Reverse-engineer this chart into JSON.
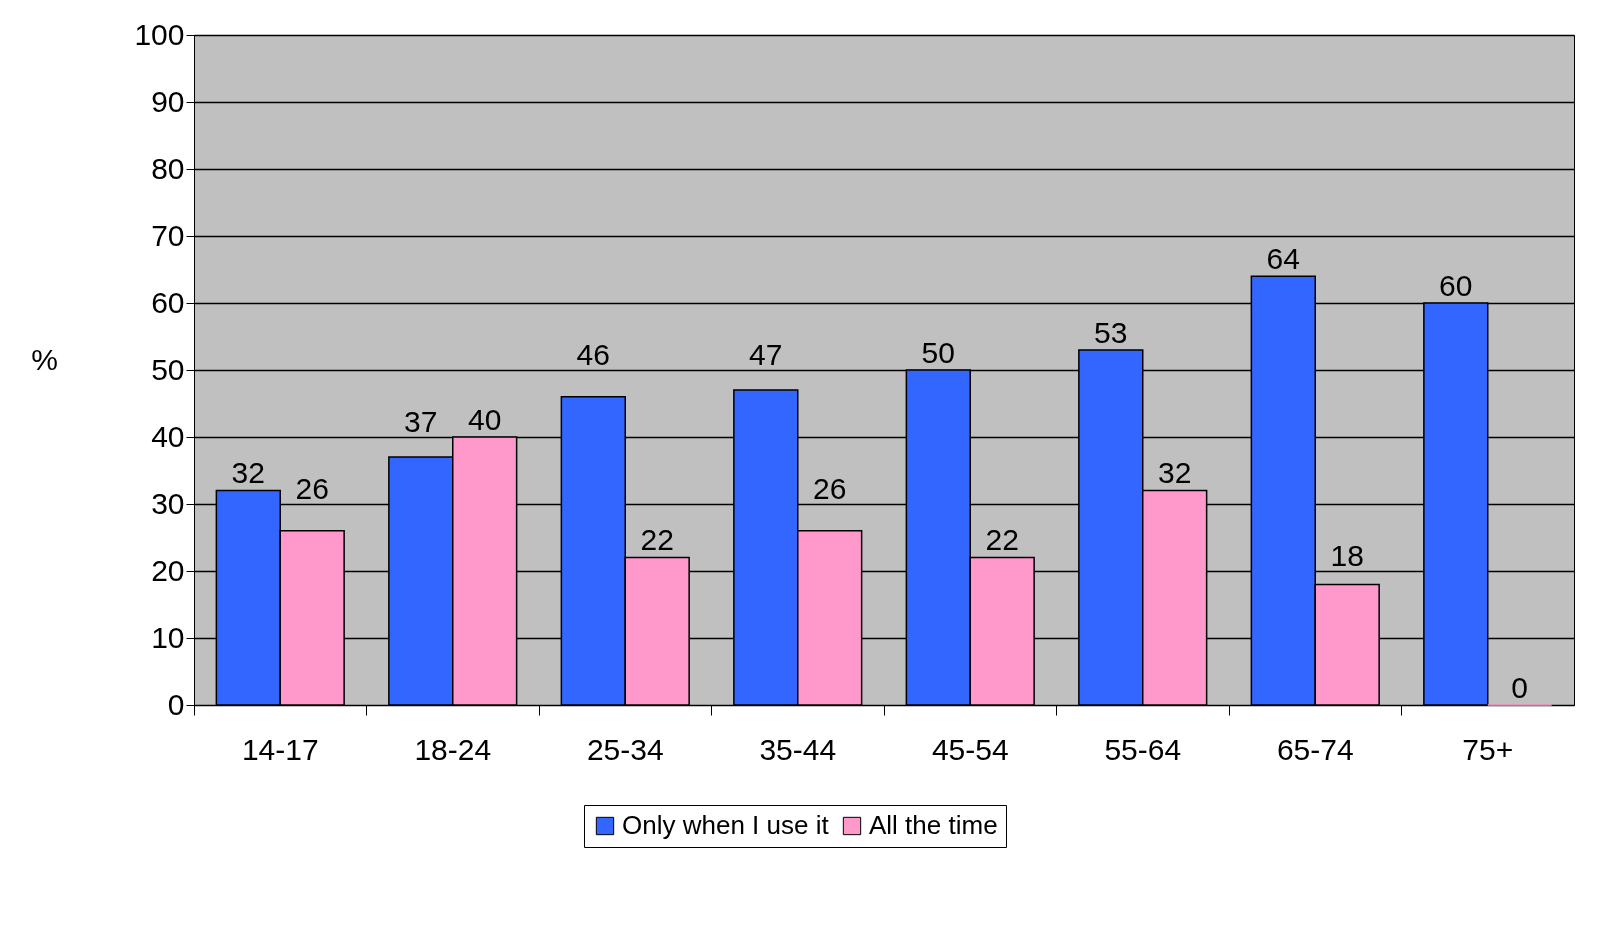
{
  "chart_data": {
    "type": "bar",
    "ylabel": "%",
    "categories": [
      "14-17",
      "18-24",
      "25-34",
      "35-44",
      "45-54",
      "55-64",
      "65-74",
      "75+"
    ],
    "series": [
      {
        "name": "Only when I use it",
        "color": "#3366ff",
        "values": [
          32,
          37,
          46,
          47,
          50,
          53,
          64,
          60
        ]
      },
      {
        "name": "All the time",
        "color": "#ff99cc",
        "values": [
          26,
          40,
          22,
          26,
          22,
          32,
          18,
          0
        ]
      }
    ],
    "ylim": [
      0,
      100
    ],
    "yticks": [
      0,
      10,
      20,
      30,
      40,
      50,
      60,
      70,
      80,
      90,
      100
    ],
    "grid": "y",
    "legend": "bottom",
    "data_labels": true
  }
}
